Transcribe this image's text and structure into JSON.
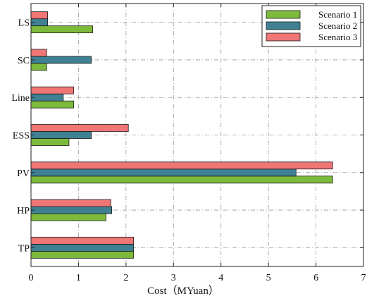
{
  "chart_data": {
    "type": "bar",
    "orientation": "horizontal",
    "categories": [
      "LS",
      "SC",
      "Line",
      "ESS",
      "PV",
      "HP",
      "TP"
    ],
    "series": [
      {
        "name": "Scenario 1",
        "color": "#7dba3c",
        "values": [
          1.3,
          0.33,
          0.9,
          0.8,
          6.35,
          1.58,
          2.16
        ]
      },
      {
        "name": "Scenario 2",
        "color": "#3f8193",
        "values": [
          0.35,
          1.27,
          0.68,
          1.27,
          5.58,
          1.7,
          2.16
        ]
      },
      {
        "name": "Scenario 3",
        "color": "#f07676",
        "values": [
          0.35,
          0.33,
          0.9,
          2.05,
          6.35,
          1.68,
          2.16
        ]
      }
    ],
    "xlabel": "Cost（MYuan）",
    "ylabel": "",
    "xlim": [
      0,
      7
    ],
    "xticks": [
      0,
      1,
      2,
      3,
      4,
      5,
      6,
      7
    ],
    "grid": true,
    "legend_position": "top-right"
  }
}
